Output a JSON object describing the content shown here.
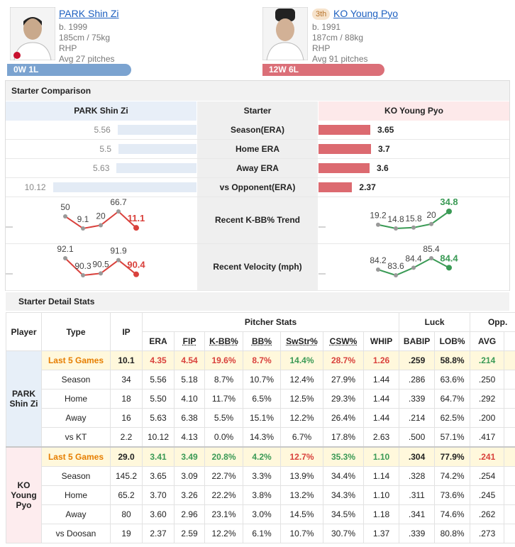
{
  "pitchers": [
    {
      "name": "PARK Shin Zi",
      "born": "b. 1999",
      "body": "185cm / 75kg",
      "hand": "RHP",
      "avg": "Avg 27 pitches",
      "record": "0W 1L",
      "color": "#7ba3d0"
    },
    {
      "rank": "3th",
      "name": "KO Young Pyo",
      "born": "b. 1991",
      "body": "187cm / 88kg",
      "hand": "RHP",
      "avg": "Avg 91 pitches",
      "record": "12W 6L",
      "color": "#db6f78"
    }
  ],
  "comparison": {
    "title": "Starter Comparison",
    "header": [
      "PARK Shin Zi",
      "Starter",
      "KO Young Pyo"
    ],
    "rows": [
      {
        "label": "Season(ERA)",
        "left": 5.56,
        "right": 3.65
      },
      {
        "label": "Home ERA",
        "left": 5.5,
        "right": 3.7
      },
      {
        "label": "Away ERA",
        "left": 5.63,
        "right": 3.6
      },
      {
        "label": "vs Opponent(ERA)",
        "left": 10.12,
        "right": 2.37
      }
    ],
    "trends": [
      {
        "label": "Recent K-BB% Trend",
        "left": [
          50,
          9.1,
          20,
          66.7,
          11.1
        ],
        "right": [
          19.2,
          14.8,
          15.8,
          20,
          34.8
        ]
      },
      {
        "label": "Recent Velocity (mph)",
        "left": [
          92.1,
          90.3,
          90.5,
          91.9,
          90.4
        ],
        "right": [
          84.2,
          83.6,
          84.4,
          85.4,
          84.4
        ]
      }
    ],
    "left_color": "#d9413c",
    "right_color": "#3a9a55",
    "left_bar": "#e3ebf5",
    "right_bar": "#dc6a70"
  },
  "detail": {
    "title": "Starter Detail Stats",
    "player": "Player",
    "type": "Type",
    "ip": "IP",
    "groups": [
      {
        "name": "Pitcher Stats",
        "columns": [
          "ERA",
          "FIP",
          "K-BB%",
          "BB%",
          "SwStr%",
          "CSW%",
          "WHIP"
        ]
      },
      {
        "name": "Luck",
        "columns": [
          "BABIP",
          "LOB%"
        ]
      },
      {
        "name": "Opp.",
        "columns": [
          "AVG"
        ]
      }
    ],
    "players": [
      {
        "name": "PARK Shin Zi",
        "color": "#e7eff8",
        "rows": [
          {
            "type": "Last 5 Games",
            "cells": [
              "10.1",
              "4.35",
              "4.54",
              "19.6%",
              "8.7%",
              "14.4%",
              "28.7%",
              "1.26",
              ".259",
              "58.8%",
              ".214"
            ],
            "colors": [
              null,
              "#d9413c",
              "#d9413c",
              "#d9413c",
              "#d9413c",
              "#3a9a55",
              "#d9413c",
              "#d9413c",
              null,
              null,
              "#3a9a55"
            ]
          },
          {
            "type": "Season",
            "cells": [
              "34",
              "5.56",
              "5.18",
              "8.7%",
              "10.7%",
              "12.4%",
              "27.9%",
              "1.44",
              ".286",
              "63.6%",
              ".250"
            ]
          },
          {
            "type": "Home",
            "cells": [
              "18",
              "5.50",
              "4.10",
              "11.7%",
              "6.5%",
              "12.5%",
              "29.3%",
              "1.44",
              ".339",
              "64.7%",
              ".292"
            ]
          },
          {
            "type": "Away",
            "cells": [
              "16",
              "5.63",
              "6.38",
              "5.5%",
              "15.1%",
              "12.2%",
              "26.4%",
              "1.44",
              ".214",
              "62.5%",
              ".200"
            ]
          },
          {
            "type": "vs KT",
            "cells": [
              "2.2",
              "10.12",
              "4.13",
              "0.0%",
              "14.3%",
              "6.7%",
              "17.8%",
              "2.63",
              ".500",
              "57.1%",
              ".417"
            ]
          }
        ]
      },
      {
        "name": "KO Young Pyo",
        "color": "#fdecee",
        "rows": [
          {
            "type": "Last 5 Games",
            "cells": [
              "29.0",
              "3.41",
              "3.49",
              "20.8%",
              "4.2%",
              "12.7%",
              "35.3%",
              "1.10",
              ".304",
              "77.9%",
              ".241"
            ],
            "colors": [
              null,
              "#3a9a55",
              "#3a9a55",
              "#3a9a55",
              "#3a9a55",
              "#d9413c",
              "#3a9a55",
              "#3a9a55",
              null,
              null,
              "#d9413c"
            ]
          },
          {
            "type": "Season",
            "cells": [
              "145.2",
              "3.65",
              "3.09",
              "22.7%",
              "3.3%",
              "13.9%",
              "34.4%",
              "1.14",
              ".328",
              "74.2%",
              ".254"
            ]
          },
          {
            "type": "Home",
            "cells": [
              "65.2",
              "3.70",
              "3.26",
              "22.2%",
              "3.8%",
              "13.2%",
              "34.3%",
              "1.10",
              ".311",
              "73.6%",
              ".245"
            ]
          },
          {
            "type": "Away",
            "cells": [
              "80",
              "3.60",
              "2.96",
              "23.1%",
              "3.0%",
              "14.5%",
              "34.5%",
              "1.18",
              ".341",
              "74.6%",
              ".262"
            ]
          },
          {
            "type": "vs Doosan",
            "cells": [
              "19",
              "2.37",
              "2.59",
              "12.2%",
              "6.1%",
              "10.7%",
              "30.7%",
              "1.37",
              ".339",
              "80.8%",
              ".273"
            ]
          }
        ]
      }
    ]
  }
}
